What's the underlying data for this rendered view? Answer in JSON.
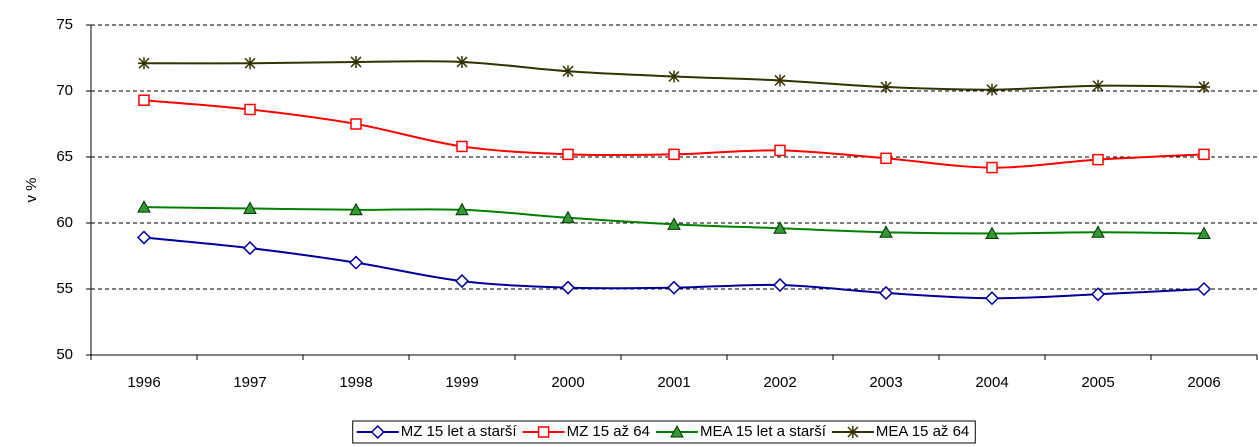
{
  "chart_data": {
    "type": "line",
    "y_label": "v %",
    "categories": [
      "1996",
      "1997",
      "1998",
      "1999",
      "2000",
      "2001",
      "2002",
      "2003",
      "2004",
      "2005",
      "2006"
    ],
    "series": [
      {
        "name": "MZ 15 let a starší",
        "color": "#000099",
        "marker": "diamond",
        "values": [
          58.9,
          58.1,
          57.0,
          55.6,
          55.1,
          55.1,
          55.3,
          54.7,
          54.3,
          54.6,
          55.0
        ]
      },
      {
        "name": "MZ 15 až 64",
        "color": "#ff0000",
        "marker": "square",
        "values": [
          69.3,
          68.6,
          67.5,
          65.8,
          65.2,
          65.2,
          65.5,
          64.9,
          64.2,
          64.8,
          65.2
        ]
      },
      {
        "name": "MEA 15 let a starší",
        "color": "#008000",
        "marker": "triangle",
        "values": [
          61.2,
          61.1,
          61.0,
          61.0,
          60.4,
          59.9,
          59.6,
          59.3,
          59.2,
          59.3,
          59.2
        ]
      },
      {
        "name": "MEA 15 až 64",
        "color": "#333300",
        "marker": "star",
        "values": [
          72.1,
          72.1,
          72.2,
          72.2,
          71.5,
          71.1,
          70.8,
          70.3,
          70.1,
          70.4,
          70.3
        ]
      }
    ],
    "ylim": [
      50,
      75
    ],
    "yticks": [
      50,
      55,
      60,
      65,
      70,
      75
    ],
    "grid": true,
    "legend": "bottom"
  }
}
